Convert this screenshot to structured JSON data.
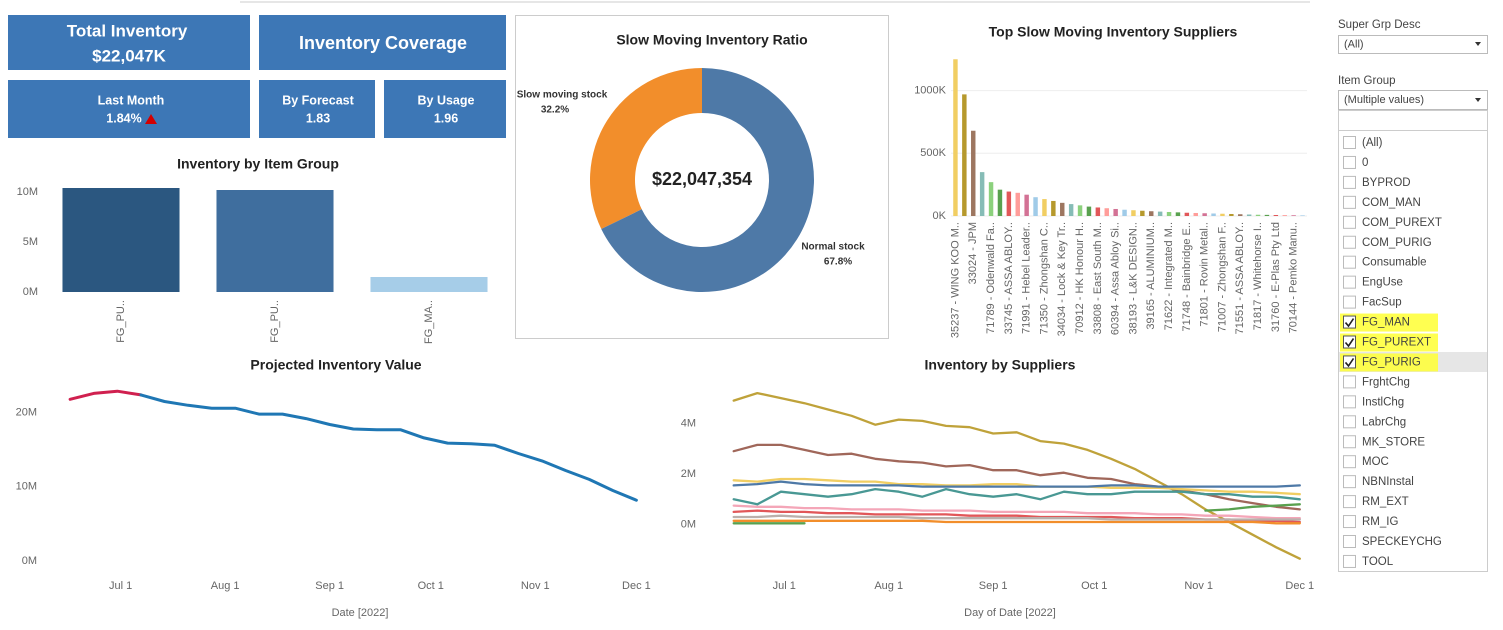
{
  "kpis": [
    {
      "title": "Total Inventory",
      "value": "$22,047K"
    },
    {
      "title": "Inventory Coverage"
    },
    {
      "title": "Last Month",
      "value": "1.84%"
    },
    {
      "title": "By Forecast",
      "value": "1.83"
    },
    {
      "title": "By Usage",
      "value": "1.96"
    }
  ],
  "filters": {
    "super_grp": {
      "label": "Super Grp Desc",
      "selected": "(All)"
    },
    "item_group": {
      "label": "Item Group",
      "selected": "(Multiple values)",
      "options": [
        {
          "label": "(All)",
          "checked": false
        },
        {
          "label": "0",
          "checked": false
        },
        {
          "label": "BYPROD",
          "checked": false
        },
        {
          "label": "COM_MAN",
          "checked": false
        },
        {
          "label": "COM_PUREXT",
          "checked": false
        },
        {
          "label": "COM_PURIG",
          "checked": false
        },
        {
          "label": "Consumable",
          "checked": false
        },
        {
          "label": "EngUse",
          "checked": false
        },
        {
          "label": "FacSup",
          "checked": false
        },
        {
          "label": "FG_MAN",
          "checked": true
        },
        {
          "label": "FG_PUREXT",
          "checked": true
        },
        {
          "label": "FG_PURIG",
          "checked": true
        },
        {
          "label": "FrghtChg",
          "checked": false
        },
        {
          "label": "InstlChg",
          "checked": false
        },
        {
          "label": "LabrChg",
          "checked": false
        },
        {
          "label": "MK_STORE",
          "checked": false
        },
        {
          "label": "MOC",
          "checked": false
        },
        {
          "label": "NBNInstal",
          "checked": false
        },
        {
          "label": "RM_EXT",
          "checked": false
        },
        {
          "label": "RM_IG",
          "checked": false
        },
        {
          "label": "SPECKEYCHG",
          "checked": false
        },
        {
          "label": "TOOL",
          "checked": false
        }
      ]
    }
  },
  "chart_data": [
    {
      "type": "bar",
      "title": "Inventory by Item Group",
      "categories": [
        "FG_PU..",
        "FG_PU..",
        "FG_MA.."
      ],
      "values": [
        10.4,
        10.2,
        1.5
      ],
      "colors": [
        "#2b5780",
        "#3f6e9e",
        "#a6cde8"
      ],
      "ylim": [
        0,
        11
      ],
      "yticks": [
        {
          "value": 0,
          "label": "0M"
        },
        {
          "value": 5,
          "label": "5M"
        },
        {
          "value": 10,
          "label": "10M"
        }
      ],
      "grid": false
    },
    {
      "type": "pie",
      "title": "Slow Moving Inventory Ratio",
      "center_label": "$22,047,354",
      "categories": [
        "Slow moving stock",
        "Normal stock"
      ],
      "values": [
        32.2,
        67.8
      ],
      "value_labels": [
        "32.2%",
        "67.8%"
      ],
      "colors": [
        "#f28e2b",
        "#4e79a7"
      ]
    },
    {
      "type": "bar",
      "title": "Top Slow Moving Inventory Suppliers",
      "categories": [
        "35237 - WING KOO M..",
        null,
        "33024 - JPM",
        null,
        "71789 - Odenwald Fa..",
        null,
        "33745 - ASSA ABLOY..",
        null,
        "71991 - Hebel Leader..",
        null,
        "71350 - Zhongshan C..",
        null,
        "34034 - Lock & Key Tr..",
        null,
        "70912 - HK Honour H..",
        null,
        "33808 - East South M..",
        null,
        "60394 - Assa Abloy Si..",
        null,
        "38193 - L&K DESIGN..",
        null,
        "39165 - ALUMINIUM..",
        null,
        "71622 - Integrated M..",
        null,
        "71748 - Bainbridge E..",
        null,
        "71801 - Rovin Metal..",
        null,
        "71007 - Zhongshan F..",
        null,
        "71551 - ASSA ABLOY..",
        null,
        "71817 - Whitehorse I..",
        null,
        "31760 - E-Plas Pty Ltd",
        null,
        "70144 - Pemko Manu..",
        null
      ],
      "values": [
        1250,
        970,
        680,
        350,
        270,
        210,
        195,
        185,
        170,
        150,
        135,
        120,
        105,
        95,
        85,
        75,
        68,
        62,
        56,
        50,
        46,
        42,
        38,
        35,
        32,
        29,
        26,
        24,
        22,
        20,
        18,
        16,
        14,
        12,
        10,
        9,
        8,
        7,
        6,
        5
      ],
      "colors": [
        "#f1ce63",
        "#b6992d",
        "#9d7660",
        "#86bcb6",
        "#8cd17d",
        "#59a14f",
        "#e15759",
        "#ff9d9a",
        "#d37295",
        "#a0cbe8"
      ],
      "ylim": [
        0,
        1300
      ],
      "yticks": [
        {
          "value": 0,
          "label": "0K"
        },
        {
          "value": 500,
          "label": "500K"
        },
        {
          "value": 1000,
          "label": "1000K"
        }
      ],
      "grid": true
    },
    {
      "type": "line",
      "title": "Projected Inventory Value",
      "x_label": "Date [2022]",
      "x": [
        "2022-06-16",
        "2022-06-23",
        "2022-06-30",
        "2022-07-07",
        "2022-07-14",
        "2022-07-21",
        "2022-07-28",
        "2022-08-04",
        "2022-08-11",
        "2022-08-18",
        "2022-08-25",
        "2022-09-01",
        "2022-09-08",
        "2022-09-15",
        "2022-09-22",
        "2022-09-29",
        "2022-10-06",
        "2022-10-13",
        "2022-10-20",
        "2022-10-27",
        "2022-11-03",
        "2022-11-10",
        "2022-11-17",
        "2022-11-24",
        "2022-12-01"
      ],
      "series": [
        {
          "color": "#d0204f",
          "values": [
            21.8,
            22.6,
            22.9,
            22.4,
            null,
            null,
            null,
            null,
            null,
            null,
            null,
            null,
            null,
            null,
            null,
            null,
            null,
            null,
            null,
            null,
            null,
            null,
            null,
            null,
            null
          ]
        },
        {
          "color": "#1f77b4",
          "values": [
            null,
            null,
            null,
            22.4,
            21.5,
            21.0,
            20.6,
            20.6,
            19.8,
            19.8,
            19.2,
            18.4,
            17.8,
            17.7,
            17.7,
            16.6,
            15.9,
            15.8,
            15.6,
            14.5,
            13.5,
            12.2,
            11.0,
            9.5,
            8.2
          ]
        }
      ],
      "xlim": [
        "2022-06-13",
        "2022-12-08"
      ],
      "xticks": [
        {
          "value": "2022-07-01",
          "label": "Jul 1"
        },
        {
          "value": "2022-08-01",
          "label": "Aug 1"
        },
        {
          "value": "2022-09-01",
          "label": "Sep 1"
        },
        {
          "value": "2022-10-01",
          "label": "Oct 1"
        },
        {
          "value": "2022-11-01",
          "label": "Nov 1"
        },
        {
          "value": "2022-12-01",
          "label": "Dec 1"
        }
      ],
      "ylim": [
        0,
        24
      ],
      "yticks": [
        {
          "value": 0,
          "label": "0M"
        },
        {
          "value": 10,
          "label": "10M"
        },
        {
          "value": 20,
          "label": "20M"
        }
      ],
      "grid": false
    },
    {
      "type": "line",
      "title": "Inventory by Suppliers",
      "x_label": "Day of Date [2022]",
      "x": [
        "2022-06-16",
        "2022-06-23",
        "2022-06-30",
        "2022-07-07",
        "2022-07-14",
        "2022-07-21",
        "2022-07-28",
        "2022-08-04",
        "2022-08-11",
        "2022-08-18",
        "2022-08-25",
        "2022-09-01",
        "2022-09-08",
        "2022-09-15",
        "2022-09-22",
        "2022-09-29",
        "2022-10-06",
        "2022-10-13",
        "2022-10-20",
        "2022-10-27",
        "2022-11-03",
        "2022-11-10",
        "2022-11-17",
        "2022-11-24",
        "2022-12-01"
      ],
      "series": [
        {
          "color": "#bfa23a",
          "values": [
            4.9,
            5.2,
            5.0,
            4.8,
            4.55,
            4.3,
            3.95,
            4.15,
            4.1,
            3.9,
            3.85,
            3.6,
            3.65,
            3.3,
            3.2,
            2.95,
            2.6,
            2.2,
            1.7,
            1.2,
            0.6,
            0.1,
            -0.4,
            -0.9,
            -1.35
          ]
        },
        {
          "color": "#a0675a",
          "values": [
            2.9,
            3.15,
            3.15,
            2.95,
            2.75,
            2.8,
            2.6,
            2.5,
            2.45,
            2.3,
            2.35,
            2.15,
            2.15,
            1.95,
            2.05,
            1.85,
            1.8,
            1.6,
            1.5,
            1.35,
            1.2,
            1.0,
            0.85,
            0.7,
            0.6
          ]
        },
        {
          "color": "#f1ce63",
          "values": [
            1.75,
            1.7,
            1.8,
            1.8,
            1.75,
            1.7,
            1.7,
            1.6,
            1.6,
            1.55,
            1.55,
            1.6,
            1.6,
            1.5,
            1.5,
            1.5,
            1.45,
            1.45,
            1.45,
            1.4,
            1.35,
            1.3,
            1.3,
            1.25,
            1.2
          ]
        },
        {
          "color": "#4e79a7",
          "values": [
            1.55,
            1.6,
            1.7,
            1.6,
            1.55,
            1.55,
            1.55,
            1.55,
            1.5,
            1.5,
            1.5,
            1.5,
            1.5,
            1.5,
            1.5,
            1.5,
            1.55,
            1.55,
            1.5,
            1.5,
            1.5,
            1.5,
            1.5,
            1.5,
            1.55
          ]
        },
        {
          "color": "#499894",
          "values": [
            1.0,
            0.8,
            1.3,
            1.2,
            1.1,
            1.2,
            1.4,
            1.3,
            1.1,
            1.4,
            1.2,
            1.1,
            1.2,
            1.0,
            1.3,
            1.2,
            1.2,
            1.3,
            1.3,
            1.3,
            1.2,
            1.2,
            1.1,
            1.1,
            1.0
          ]
        },
        {
          "color": "#f4a6b8",
          "values": [
            0.75,
            0.7,
            0.7,
            0.65,
            0.65,
            0.6,
            0.6,
            0.6,
            0.55,
            0.55,
            0.55,
            0.5,
            0.5,
            0.5,
            0.5,
            0.45,
            0.45,
            0.45,
            0.4,
            0.4,
            0.35,
            0.35,
            0.3,
            0.25,
            0.25
          ]
        },
        {
          "color": "#e15759",
          "values": [
            0.5,
            0.55,
            0.5,
            0.5,
            0.45,
            0.45,
            0.4,
            0.4,
            0.4,
            0.4,
            0.35,
            0.35,
            0.35,
            0.3,
            0.3,
            0.3,
            0.3,
            0.25,
            0.25,
            0.25,
            0.2,
            0.2,
            0.15,
            0.15,
            0.1
          ]
        },
        {
          "color": "#59a14f",
          "values": [
            0.05,
            0.05,
            0.05,
            0.05,
            null,
            null,
            null,
            null,
            null,
            null,
            null,
            null,
            null,
            null,
            null,
            null,
            null,
            null,
            null,
            null,
            0.55,
            0.6,
            0.7,
            0.75,
            0.8
          ]
        },
        {
          "color": "#bab0ac",
          "values": [
            0.3,
            0.3,
            0.35,
            0.3,
            0.3,
            0.3,
            0.3,
            0.3,
            0.25,
            0.25,
            0.25,
            0.25,
            0.25,
            0.25,
            0.25,
            0.25,
            0.2,
            0.2,
            0.2,
            0.2,
            0.2,
            0.2,
            0.2,
            0.2,
            0.2
          ]
        },
        {
          "color": "#f28e2b",
          "values": [
            0.15,
            0.15,
            0.15,
            0.15,
            0.15,
            0.15,
            0.15,
            0.15,
            0.15,
            0.1,
            0.1,
            0.1,
            0.1,
            0.1,
            0.1,
            0.1,
            0.1,
            0.1,
            0.1,
            0.1,
            0.1,
            0.1,
            0.1,
            0.05,
            0.05
          ]
        }
      ],
      "xlim": [
        "2022-06-06",
        "2022-12-07"
      ],
      "xticks": [
        {
          "value": "2022-07-01",
          "label": "Jul 1"
        },
        {
          "value": "2022-08-01",
          "label": "Aug 1"
        },
        {
          "value": "2022-09-01",
          "label": "Sep 1"
        },
        {
          "value": "2022-10-01",
          "label": "Oct 1"
        },
        {
          "value": "2022-11-01",
          "label": "Nov 1"
        },
        {
          "value": "2022-12-01",
          "label": "Dec 1"
        }
      ],
      "ylim": [
        -1.6,
        5.4
      ],
      "yticks": [
        {
          "value": 0,
          "label": "0M"
        },
        {
          "value": 2,
          "label": "2M"
        },
        {
          "value": 4,
          "label": "4M"
        }
      ],
      "grid": false
    }
  ]
}
